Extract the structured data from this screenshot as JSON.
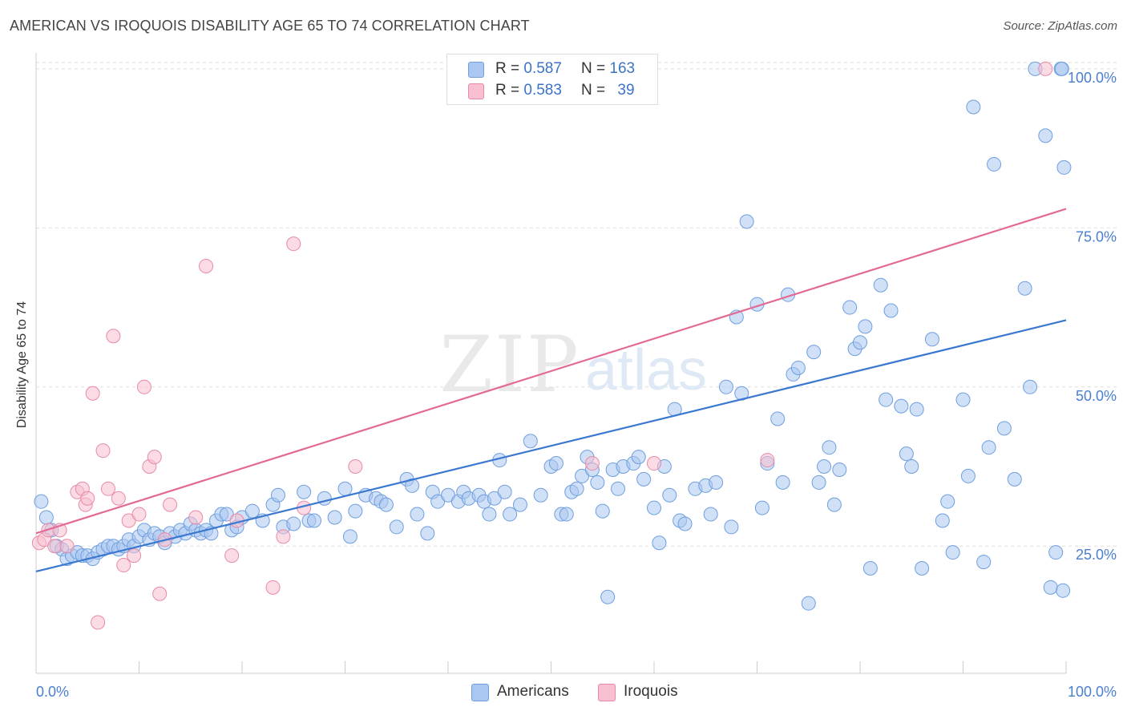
{
  "header": {
    "title": "AMERICAN VS IROQUOIS DISABILITY AGE 65 TO 74 CORRELATION CHART",
    "source": "Source: ZipAtlas.com"
  },
  "watermark": {
    "zip": "ZIP",
    "atlas": "atlas"
  },
  "legend": {
    "rows": [
      {
        "r_label": "R = ",
        "r_value": "0.587",
        "n_label": "N = ",
        "n_value": "163",
        "color": "#a9c7f0",
        "border": "#6f9fe0"
      },
      {
        "r_label": "R = ",
        "r_value": "0.583",
        "n_label": "N = ",
        "n_value": "39",
        "color": "#f7bfd0",
        "border": "#e88aa8"
      }
    ],
    "bottom": [
      {
        "label": "Americans",
        "color": "#a9c7f0",
        "border": "#6f9fe0"
      },
      {
        "label": "Iroquois",
        "color": "#f7bfd0",
        "border": "#e88aa8"
      }
    ]
  },
  "chart_data": {
    "type": "scatter",
    "title": "AMERICAN VS IROQUOIS DISABILITY AGE 65 TO 74 CORRELATION CHART",
    "xlabel": "",
    "ylabel": "Disability Age 65 to 74",
    "xlim": [
      0,
      100
    ],
    "ylim": [
      5,
      102
    ],
    "x_tick_labels": [
      "0.0%",
      "100.0%"
    ],
    "y_ticks": [
      25,
      50,
      75,
      100
    ],
    "y_tick_labels": [
      "25.0%",
      "50.0%",
      "75.0%",
      "100.0%"
    ],
    "grid": "horizontal dashed",
    "legend_placement": "top-center and bottom",
    "series": [
      {
        "name": "Americans",
        "color": "#6f9fe0",
        "fill": "#a9c7f0",
        "trend": {
          "x": [
            0,
            100
          ],
          "y": [
            21.0,
            60.5
          ],
          "color": "#3b78d0"
        },
        "points": [
          [
            0.5,
            32
          ],
          [
            1,
            29.5
          ],
          [
            1.5,
            27.5
          ],
          [
            2,
            25
          ],
          [
            2.5,
            24.5
          ],
          [
            3,
            23
          ],
          [
            3.5,
            23.5
          ],
          [
            4,
            24
          ],
          [
            4.5,
            23.5
          ],
          [
            5,
            23.5
          ],
          [
            5.5,
            23
          ],
          [
            6,
            24
          ],
          [
            6.5,
            24.5
          ],
          [
            7,
            25
          ],
          [
            7.5,
            25
          ],
          [
            8,
            24.5
          ],
          [
            8.5,
            25
          ],
          [
            9,
            26
          ],
          [
            9.5,
            25
          ],
          [
            10,
            26.5
          ],
          [
            10.5,
            27.5
          ],
          [
            11,
            26
          ],
          [
            11.5,
            27
          ],
          [
            12,
            26.5
          ],
          [
            12.5,
            25.5
          ],
          [
            13,
            27
          ],
          [
            13.5,
            26.5
          ],
          [
            14,
            27.5
          ],
          [
            14.5,
            27
          ],
          [
            15,
            28.5
          ],
          [
            15.5,
            27.5
          ],
          [
            16,
            27
          ],
          [
            16.5,
            27.5
          ],
          [
            17,
            27
          ],
          [
            17.5,
            29
          ],
          [
            18,
            30
          ],
          [
            18.5,
            30
          ],
          [
            19,
            27.5
          ],
          [
            19.5,
            28
          ],
          [
            20,
            29.5
          ],
          [
            21,
            30.5
          ],
          [
            22,
            29
          ],
          [
            23,
            31.5
          ],
          [
            23.5,
            33
          ],
          [
            24,
            28
          ],
          [
            25,
            28.5
          ],
          [
            26,
            33.5
          ],
          [
            26.5,
            29
          ],
          [
            27,
            29
          ],
          [
            28,
            32.5
          ],
          [
            29,
            29.5
          ],
          [
            30,
            34
          ],
          [
            30.5,
            26.5
          ],
          [
            31,
            30.5
          ],
          [
            32,
            33
          ],
          [
            33,
            32.5
          ],
          [
            33.5,
            32
          ],
          [
            34,
            31.5
          ],
          [
            35,
            28
          ],
          [
            36,
            35.5
          ],
          [
            36.5,
            34.5
          ],
          [
            37,
            30
          ],
          [
            38,
            27
          ],
          [
            38.5,
            33.5
          ],
          [
            39,
            32
          ],
          [
            40,
            33
          ],
          [
            41,
            32
          ],
          [
            41.5,
            33.5
          ],
          [
            42,
            32.5
          ],
          [
            43,
            33
          ],
          [
            43.5,
            32
          ],
          [
            44,
            30
          ],
          [
            44.5,
            32.5
          ],
          [
            45,
            38.5
          ],
          [
            45.5,
            33.5
          ],
          [
            46,
            30
          ],
          [
            47,
            31.5
          ],
          [
            48,
            41.5
          ],
          [
            49,
            33
          ],
          [
            50,
            37.5
          ],
          [
            50.5,
            38
          ],
          [
            51,
            30
          ],
          [
            51.5,
            30
          ],
          [
            52,
            33.5
          ],
          [
            52.5,
            34
          ],
          [
            53,
            36
          ],
          [
            53.5,
            39
          ],
          [
            54,
            37
          ],
          [
            54.5,
            35
          ],
          [
            55,
            30.5
          ],
          [
            55.5,
            17
          ],
          [
            56,
            37
          ],
          [
            56.5,
            34
          ],
          [
            57,
            37.5
          ],
          [
            58,
            38
          ],
          [
            58.5,
            39
          ],
          [
            59,
            35.5
          ],
          [
            60,
            31
          ],
          [
            60.5,
            25.5
          ],
          [
            61,
            37.5
          ],
          [
            61.5,
            33
          ],
          [
            62,
            46.5
          ],
          [
            62.5,
            29
          ],
          [
            63,
            28.5
          ],
          [
            64,
            34
          ],
          [
            65,
            34.5
          ],
          [
            65.5,
            30
          ],
          [
            66,
            35
          ],
          [
            67,
            50
          ],
          [
            67.5,
            28
          ],
          [
            68,
            61
          ],
          [
            68.5,
            49
          ],
          [
            69,
            76
          ],
          [
            70,
            63
          ],
          [
            70.5,
            31
          ],
          [
            71,
            38
          ],
          [
            72,
            45
          ],
          [
            72.5,
            35
          ],
          [
            73,
            64.5
          ],
          [
            73.5,
            52
          ],
          [
            74,
            53
          ],
          [
            75,
            16
          ],
          [
            75.5,
            55.5
          ],
          [
            76,
            35
          ],
          [
            76.5,
            37.5
          ],
          [
            77,
            40.5
          ],
          [
            77.5,
            31.5
          ],
          [
            78,
            37
          ],
          [
            79,
            62.5
          ],
          [
            79.5,
            56
          ],
          [
            80,
            57
          ],
          [
            80.5,
            59.5
          ],
          [
            81,
            21.5
          ],
          [
            82,
            66
          ],
          [
            82.5,
            48
          ],
          [
            83,
            62
          ],
          [
            84,
            47
          ],
          [
            84.5,
            39.5
          ],
          [
            85,
            37.5
          ],
          [
            85.5,
            46.5
          ],
          [
            86,
            21.5
          ],
          [
            87,
            57.5
          ],
          [
            88,
            29
          ],
          [
            88.5,
            32
          ],
          [
            89,
            24
          ],
          [
            90,
            48
          ],
          [
            90.5,
            36
          ],
          [
            91,
            94
          ],
          [
            92,
            22.5
          ],
          [
            92.5,
            40.5
          ],
          [
            93,
            85
          ],
          [
            94,
            43.5
          ],
          [
            95,
            35.5
          ],
          [
            96,
            65.5
          ],
          [
            96.5,
            50
          ],
          [
            97,
            100
          ],
          [
            98,
            89.5
          ],
          [
            98.5,
            18.5
          ],
          [
            99,
            24
          ],
          [
            99.5,
            100
          ],
          [
            99.6,
            100
          ],
          [
            99.8,
            84.5
          ],
          [
            99.7,
            18
          ]
        ]
      },
      {
        "name": "Iroquois",
        "color": "#e88aa8",
        "fill": "#f7bfd0",
        "trend": {
          "x": [
            0,
            100
          ],
          "y": [
            27.0,
            78.0
          ],
          "color": "#e26a93"
        },
        "points": [
          [
            0.3,
            25.5
          ],
          [
            0.8,
            26
          ],
          [
            1.2,
            27.5
          ],
          [
            1.8,
            25
          ],
          [
            2.3,
            27.5
          ],
          [
            3,
            25
          ],
          [
            4,
            33.5
          ],
          [
            4.5,
            34
          ],
          [
            4.8,
            31.5
          ],
          [
            5,
            32.5
          ],
          [
            5.5,
            49
          ],
          [
            6,
            13
          ],
          [
            6.5,
            40
          ],
          [
            7,
            34
          ],
          [
            7.5,
            58
          ],
          [
            8,
            32.5
          ],
          [
            8.5,
            22
          ],
          [
            9,
            29
          ],
          [
            9.5,
            23.5
          ],
          [
            10,
            30
          ],
          [
            10.5,
            50
          ],
          [
            11,
            37.5
          ],
          [
            11.5,
            39
          ],
          [
            12,
            17.5
          ],
          [
            12.5,
            26
          ],
          [
            13,
            31.5
          ],
          [
            15.5,
            29.5
          ],
          [
            16.5,
            69
          ],
          [
            19,
            23.5
          ],
          [
            19.5,
            29
          ],
          [
            23,
            18.5
          ],
          [
            24,
            26.5
          ],
          [
            25,
            72.5
          ],
          [
            26,
            31
          ],
          [
            31,
            37.5
          ],
          [
            54,
            38
          ],
          [
            60,
            38
          ],
          [
            71,
            38.5
          ],
          [
            98,
            100
          ]
        ]
      }
    ]
  }
}
